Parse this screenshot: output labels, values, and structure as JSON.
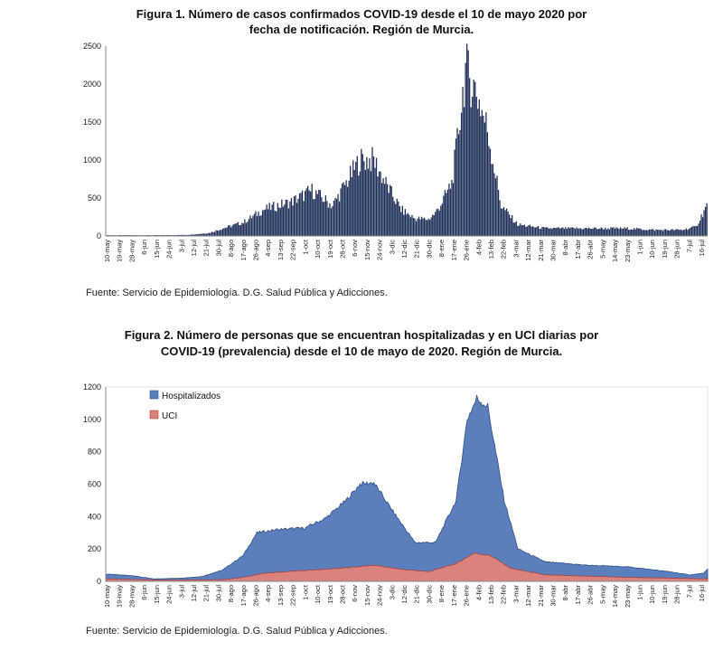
{
  "figure1": {
    "title_line1": "Figura 1. Número de casos confirmados COVID-19 desde el 10 de mayo 2020 por",
    "title_line2": "fecha de notificación. Región de Murcia.",
    "source": "Fuente: Servicio de Epidemiología. D.G. Salud Pública y Adicciones."
  },
  "figure2": {
    "title_line1": "Figura 2. Número de personas que se encuentran hospitalizadas  y en UCI diarias por",
    "title_line2": "COVID-19 (prevalencia)  desde el 10 de mayo de 2020. Región de Murcia.",
    "source": "Fuente: Servicio de Epidemiología. D.G. Salud Pública y Adicciones."
  },
  "colors": {
    "bars": "#1f2f5a",
    "hosp_fill": "#5b7fbd",
    "hosp_stroke": "#2f4f8a",
    "uci_fill": "#d9827e",
    "uci_stroke": "#a8403b",
    "axis": "#888888",
    "grid": "#cccccc"
  },
  "chart_data": [
    {
      "type": "bar",
      "ylim": [
        0,
        2500
      ],
      "yticks": [
        0,
        500,
        1000,
        1500,
        2000,
        2500
      ],
      "xlabels": [
        "10-may",
        "19-may",
        "28-may",
        "6-jun",
        "15-jun",
        "24-jun",
        "3-jul",
        "12-jul",
        "21-jul",
        "30-jul",
        "8-ago",
        "17-ago",
        "26-ago",
        "4-sep",
        "13-sep",
        "22-sep",
        "1-oct",
        "10-oct",
        "19-oct",
        "28-oct",
        "6-nov",
        "15-nov",
        "24-nov",
        "3-dic",
        "12-dic",
        "21-dic",
        "30-dic",
        "8-ene",
        "17-ene",
        "26-ene",
        "4-feb",
        "13-feb",
        "22-feb",
        "3-mar",
        "12-mar",
        "21-mar",
        "30-mar",
        "8-abr",
        "17-abr",
        "26-abr",
        "5-may",
        "14-may",
        "23-may",
        "1-jun",
        "10-jun",
        "19-jun",
        "28-jun",
        "7-jul",
        "16-jul"
      ],
      "x_start_date": "2020-05-10",
      "x_end_date": "2021-07-22",
      "keypoints": [
        [
          0,
          10
        ],
        [
          40,
          10
        ],
        [
          60,
          15
        ],
        [
          75,
          40
        ],
        [
          85,
          100
        ],
        [
          100,
          180
        ],
        [
          115,
          350
        ],
        [
          135,
          450
        ],
        [
          150,
          600
        ],
        [
          165,
          400
        ],
        [
          175,
          700
        ],
        [
          185,
          1000
        ],
        [
          195,
          1000
        ],
        [
          205,
          650
        ],
        [
          215,
          350
        ],
        [
          225,
          230
        ],
        [
          235,
          220
        ],
        [
          240,
          300
        ],
        [
          245,
          450
        ],
        [
          252,
          700
        ],
        [
          255,
          1100
        ],
        [
          262,
          2200
        ],
        [
          270,
          1900
        ],
        [
          278,
          1400
        ],
        [
          288,
          400
        ],
        [
          300,
          150
        ],
        [
          320,
          100
        ],
        [
          380,
          100
        ],
        [
          400,
          80
        ],
        [
          420,
          80
        ],
        [
          430,
          120
        ],
        [
          438,
          400
        ],
        [
          440,
          600
        ]
      ],
      "series": [
        {
          "name": ""
        }
      ]
    },
    {
      "type": "area",
      "ylim": [
        0,
        1200
      ],
      "yticks": [
        0,
        200,
        400,
        600,
        800,
        1000,
        1200
      ],
      "xlabels": [
        "10-may",
        "19-may",
        "28-may",
        "6-jun",
        "15-jun",
        "24-jun",
        "3-jul",
        "12-jul",
        "21-jul",
        "30-jul",
        "8-ago",
        "17-ago",
        "26-ago",
        "4-sep",
        "13-sep",
        "22-sep",
        "1-oct",
        "10-oct",
        "19-oct",
        "28-oct",
        "6-nov",
        "15-nov",
        "24-nov",
        "3-dic",
        "12-dic",
        "21-dic",
        "30-dic",
        "8-ene",
        "17-ene",
        "26-ene",
        "4-feb",
        "13-feb",
        "22-feb",
        "3-mar",
        "12-mar",
        "21-mar",
        "30-mar",
        "8-abr",
        "17-abr",
        "26-abr",
        "5-may",
        "14-may",
        "23-may",
        "1-jun",
        "10-jun",
        "19-jun",
        "28-jun",
        "7-jul",
        "16-jul"
      ],
      "x_start_date": "2020-05-10",
      "x_end_date": "2021-07-22",
      "series": [
        {
          "name": "Hospitalizados",
          "keypoints": [
            [
              0,
              45
            ],
            [
              20,
              35
            ],
            [
              35,
              15
            ],
            [
              55,
              20
            ],
            [
              70,
              30
            ],
            [
              85,
              70
            ],
            [
              100,
              160
            ],
            [
              110,
              300
            ],
            [
              125,
              320
            ],
            [
              145,
              330
            ],
            [
              160,
              390
            ],
            [
              175,
              500
            ],
            [
              185,
              600
            ],
            [
              195,
              610
            ],
            [
              210,
              420
            ],
            [
              225,
              240
            ],
            [
              240,
              240
            ],
            [
              255,
              500
            ],
            [
              263,
              1000
            ],
            [
              270,
              1130
            ],
            [
              278,
              1080
            ],
            [
              290,
              500
            ],
            [
              300,
              200
            ],
            [
              320,
              120
            ],
            [
              350,
              100
            ],
            [
              380,
              90
            ],
            [
              410,
              60
            ],
            [
              425,
              40
            ],
            [
              435,
              50
            ],
            [
              440,
              90
            ]
          ]
        },
        {
          "name": "UCI",
          "keypoints": [
            [
              0,
              15
            ],
            [
              40,
              8
            ],
            [
              85,
              10
            ],
            [
              100,
              25
            ],
            [
              115,
              50
            ],
            [
              140,
              65
            ],
            [
              170,
              80
            ],
            [
              195,
              100
            ],
            [
              215,
              75
            ],
            [
              235,
              60
            ],
            [
              255,
              110
            ],
            [
              268,
              175
            ],
            [
              280,
              160
            ],
            [
              295,
              80
            ],
            [
              320,
              40
            ],
            [
              380,
              25
            ],
            [
              440,
              15
            ]
          ]
        }
      ]
    }
  ]
}
